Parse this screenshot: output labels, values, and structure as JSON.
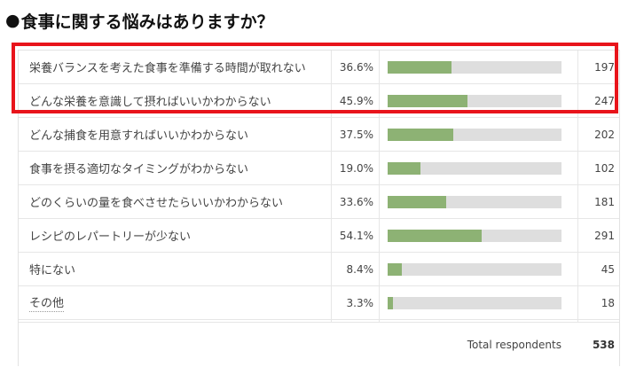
{
  "title": {
    "bullet": "●",
    "text": "食事に関する悩みはありますか？"
  },
  "highlight_color": "#e8141b",
  "bar_fill_color": "#8db274",
  "bar_track_color": "#dedede",
  "chart_data": {
    "type": "bar",
    "orientation": "horizontal",
    "rows": [
      {
        "label": "栄養バランスを考えた食事を準備する時間が取れない",
        "percent": 36.6,
        "percent_label": "36.6%",
        "count": 197,
        "count_label": "197"
      },
      {
        "label": "どんな栄養を意識して摂ればいいかわからない",
        "percent": 45.9,
        "percent_label": "45.9%",
        "count": 247,
        "count_label": "247"
      },
      {
        "label": "どんな捕食を用意すればいいかわからない",
        "percent": 37.5,
        "percent_label": "37.5%",
        "count": 202,
        "count_label": "202"
      },
      {
        "label": "食事を摂る適切なタイミングがわからない",
        "percent": 19.0,
        "percent_label": "19.0%",
        "count": 102,
        "count_label": "102"
      },
      {
        "label": "どのくらいの量を食べさせたらいいかわからない",
        "percent": 33.6,
        "percent_label": "33.6%",
        "count": 181,
        "count_label": "181"
      },
      {
        "label": "レシピのレパートリーが少ない",
        "percent": 54.1,
        "percent_label": "54.1%",
        "count": 291,
        "count_label": "291"
      },
      {
        "label": "特にない",
        "percent": 8.4,
        "percent_label": "8.4%",
        "count": 45,
        "count_label": "45"
      },
      {
        "label": "その他",
        "percent": 3.3,
        "percent_label": "3.3%",
        "count": 18,
        "count_label": "18"
      }
    ],
    "xlim": [
      0,
      100
    ],
    "total_label": "Total respondents",
    "total_value": "538",
    "highlighted_rows": [
      0,
      1
    ]
  }
}
